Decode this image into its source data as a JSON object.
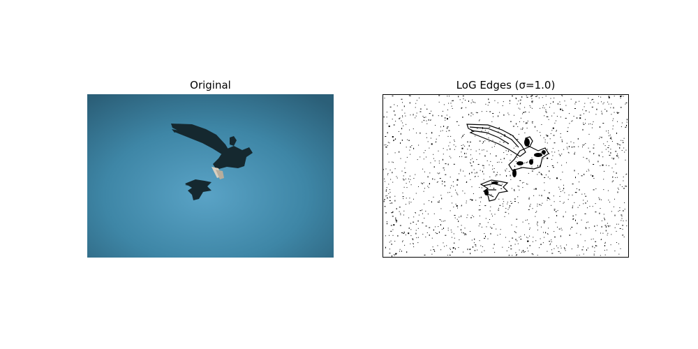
{
  "panels": {
    "left_title": "Original",
    "right_title": "LoG Edges (σ=1.0)"
  },
  "colors": {
    "sky_center": "#5aa3c6",
    "sky_edge": "#2b5f78",
    "bird": "#15282f",
    "edge_ink": "#000000",
    "background": "#ffffff"
  }
}
